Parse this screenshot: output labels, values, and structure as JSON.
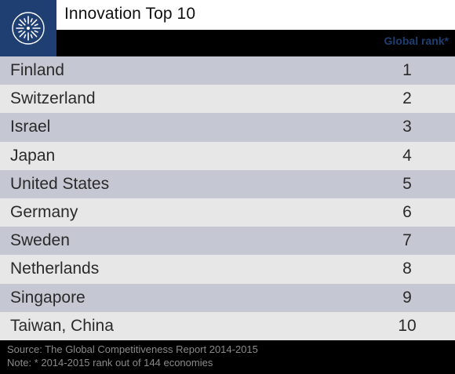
{
  "header": {
    "title": "Innovation Top 10",
    "column_label": "Global rank*",
    "logo_icon": "starburst-logo-icon"
  },
  "colors": {
    "brand": "#1f3f73",
    "row_odd": "#c5c8d3",
    "row_even": "#e7e7e7"
  },
  "rows": [
    {
      "country": "Finland",
      "rank": "1"
    },
    {
      "country": "Switzerland",
      "rank": "2"
    },
    {
      "country": "Israel",
      "rank": "3"
    },
    {
      "country": "Japan",
      "rank": "4"
    },
    {
      "country": "United States",
      "rank": "5"
    },
    {
      "country": "Germany",
      "rank": "6"
    },
    {
      "country": "Sweden",
      "rank": "7"
    },
    {
      "country": "Netherlands",
      "rank": "8"
    },
    {
      "country": "Singapore",
      "rank": "9"
    },
    {
      "country": "Taiwan, China",
      "rank": "10"
    }
  ],
  "footer": {
    "source": "Source: The Global Competitiveness Report 2014-2015",
    "note": "Note: * 2014-2015 rank out of 144 economies"
  }
}
